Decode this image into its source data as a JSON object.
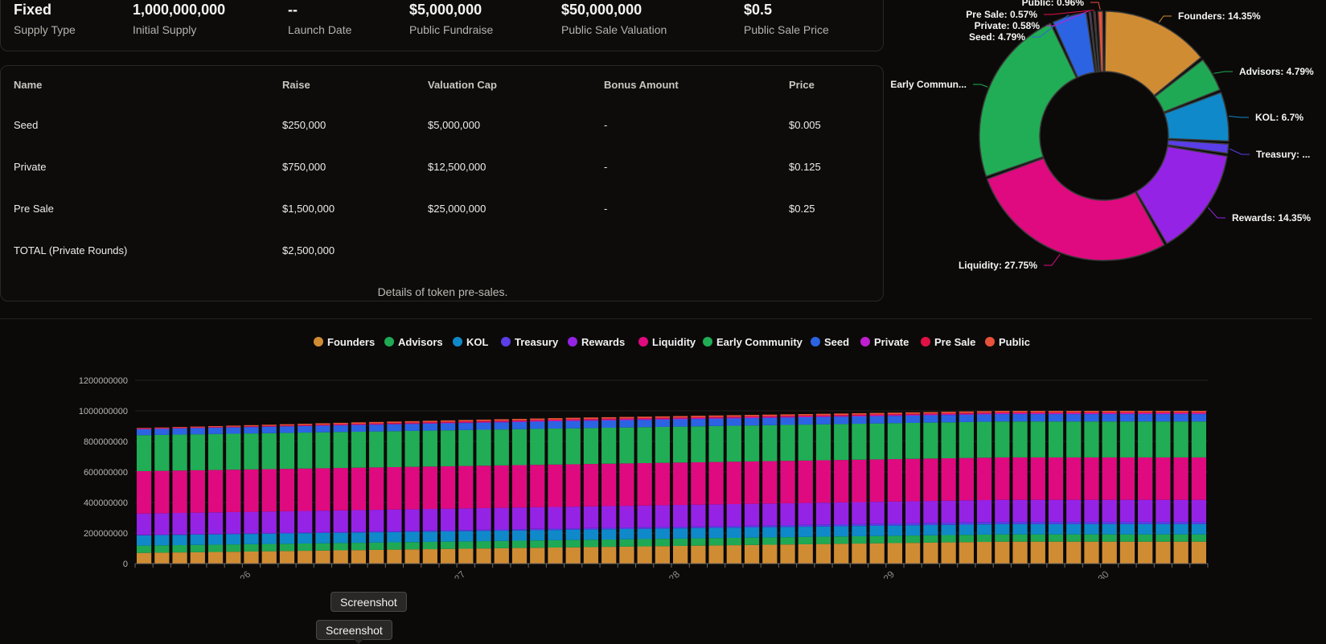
{
  "stats": [
    {
      "value": "Fixed",
      "label": "Supply Type"
    },
    {
      "value": "1,000,000,000",
      "label": "Initial Supply"
    },
    {
      "value": "--",
      "label": "Launch Date"
    },
    {
      "value": "$5,000,000",
      "label": "Public Fundraise"
    },
    {
      "value": "$50,000,000",
      "label": "Public Sale Valuation"
    },
    {
      "value": "$0.5",
      "label": "Public Sale Price"
    }
  ],
  "sales_table": {
    "headers": [
      "Name",
      "Raise",
      "Valuation Cap",
      "Bonus Amount",
      "Price"
    ],
    "rows": [
      [
        "Seed",
        "$250,000",
        "$5,000,000",
        "-",
        "$0.005"
      ],
      [
        "Private",
        "$750,000",
        "$12,500,000",
        "-",
        "$0.125"
      ],
      [
        "Pre Sale",
        "$1,500,000",
        "$25,000,000",
        "-",
        "$0.25"
      ],
      [
        "TOTAL (Private Rounds)",
        "$2,500,000",
        "",
        "",
        ""
      ]
    ],
    "caption": "Details of token pre-sales."
  },
  "tooltips": [
    "Screenshot",
    "Screenshot"
  ],
  "chart_data": [
    {
      "type": "pie",
      "variant": "donut",
      "slices": [
        {
          "name": "Founders",
          "value": 14.35,
          "label": "Founders: 14.35%",
          "color": "#d08c33"
        },
        {
          "name": "Advisors",
          "value": 4.79,
          "label": "Advisors: 4.79%",
          "color": "#1fa954"
        },
        {
          "name": "KOL",
          "value": 6.7,
          "label": "KOL: 6.7%",
          "color": "#0f89c9"
        },
        {
          "name": "Treasury",
          "value": 1.57,
          "label": "Treasury: ...",
          "color": "#5a3ee8"
        },
        {
          "name": "Rewards",
          "value": 14.35,
          "label": "Rewards: 14.35%",
          "color": "#9523e6"
        },
        {
          "name": "Liquidity",
          "value": 27.75,
          "label": "Liquidity: 27.75%",
          "color": "#df0a7f"
        },
        {
          "name": "Early Community",
          "value": 23.54,
          "label": "Early Commun...",
          "color": "#21ad55"
        },
        {
          "name": "Seed",
          "value": 4.79,
          "label": "Seed: 4.79%",
          "color": "#2c63e3"
        },
        {
          "name": "Private",
          "value": 0.58,
          "label": "Private: 0.58%",
          "color": "#c01fd0"
        },
        {
          "name": "Pre Sale",
          "value": 0.57,
          "label": "Pre Sale: 0.57%",
          "color": "#e01245"
        },
        {
          "name": "Public",
          "value": 0.96,
          "label": "Public: 0.96%",
          "color": "#e8513a"
        }
      ]
    },
    {
      "type": "bar",
      "stacked": true,
      "legend_position": "top-center",
      "ylim": [
        0,
        1200000000
      ],
      "yticks": [
        "0",
        "200000000",
        "400000000",
        "600000000",
        "800000000",
        "1000000000",
        "1200000000"
      ],
      "xtick_labels": [
        {
          "label": "1/2026",
          "index": 6
        },
        {
          "label": "1/2027",
          "index": 18
        },
        {
          "label": "1/2028",
          "index": 30
        },
        {
          "label": "1/2029",
          "index": 42
        },
        {
          "label": "1/2030",
          "index": 54
        }
      ],
      "num_periods": 60,
      "series": [
        {
          "name": "Founders",
          "color": "#d08c33",
          "start": 70000000,
          "end": 143500000,
          "ramp_end": 48
        },
        {
          "name": "Advisors",
          "color": "#1fa954",
          "start": 47900000,
          "end": 47900000,
          "ramp_end": 1
        },
        {
          "name": "KOL",
          "color": "#0f89c9",
          "start": 67000000,
          "end": 67000000,
          "ramp_end": 1
        },
        {
          "name": "Treasury",
          "color": "#5a3ee8",
          "start": 3000000,
          "end": 15700000,
          "ramp_end": 48
        },
        {
          "name": "Rewards",
          "color": "#9523e6",
          "start": 140000000,
          "end": 143500000,
          "ramp_end": 48
        },
        {
          "name": "Liquidity",
          "color": "#df0a7f",
          "start": 277500000,
          "end": 277500000,
          "ramp_end": 1
        },
        {
          "name": "Early Community",
          "color": "#21ad55",
          "start": 235400000,
          "end": 235400000,
          "ramp_end": 1
        },
        {
          "name": "Seed",
          "color": "#2c63e3",
          "start": 40000000,
          "end": 47900000,
          "ramp_end": 24
        },
        {
          "name": "Private",
          "color": "#c01fd0",
          "start": 1000000,
          "end": 5800000,
          "ramp_end": 24
        },
        {
          "name": "Pre Sale",
          "color": "#e01245",
          "start": 2000000,
          "end": 5700000,
          "ramp_end": 18
        },
        {
          "name": "Public",
          "color": "#e8513a",
          "start": 4000000,
          "end": 9600000,
          "ramp_end": 12
        }
      ]
    }
  ]
}
